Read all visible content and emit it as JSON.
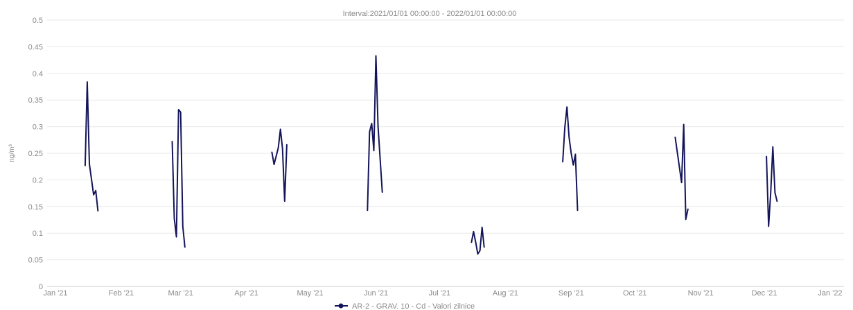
{
  "chart_data": {
    "type": "line",
    "title": "Interval:2021/01/01 00:00:00 - 2022/01/01 00:00:00",
    "ylabel": "ng/m³",
    "xlabel": "",
    "ylim": [
      0,
      0.5
    ],
    "y_ticks": [
      "0",
      "0.05",
      "0.1",
      "0.15",
      "0.2",
      "0.25",
      "0.3",
      "0.35",
      "0.4",
      "0.45",
      "0.5"
    ],
    "xlim": [
      "2021-01-01",
      "2022-01-01"
    ],
    "x_ticks": [
      {
        "date": "2021-01-01",
        "label": "Jan '21"
      },
      {
        "date": "2021-02-01",
        "label": "Feb '21"
      },
      {
        "date": "2021-03-01",
        "label": "Mar '21"
      },
      {
        "date": "2021-04-01",
        "label": "Apr '21"
      },
      {
        "date": "2021-05-01",
        "label": "May '21"
      },
      {
        "date": "2021-06-01",
        "label": "Jun '21"
      },
      {
        "date": "2021-07-01",
        "label": "Jul '21"
      },
      {
        "date": "2021-08-01",
        "label": "Aug '21"
      },
      {
        "date": "2021-09-01",
        "label": "Sep '21"
      },
      {
        "date": "2021-10-01",
        "label": "Oct '21"
      },
      {
        "date": "2021-11-01",
        "label": "Nov '21"
      },
      {
        "date": "2021-12-01",
        "label": "Dec '21"
      },
      {
        "date": "2022-01-01",
        "label": "Jan '22"
      }
    ],
    "grid": true,
    "legend_position": "bottom-center",
    "series": [
      {
        "name": "AR-2 - GRAV. 10 - Cd - Valori zilnice",
        "color": "#14145a",
        "segments": [
          [
            {
              "x": "2021-01-15",
              "y": 0.227
            },
            {
              "x": "2021-01-16",
              "y": 0.384
            },
            {
              "x": "2021-01-17",
              "y": 0.23
            },
            {
              "x": "2021-01-19",
              "y": 0.172
            },
            {
              "x": "2021-01-20",
              "y": 0.18
            },
            {
              "x": "2021-01-21",
              "y": 0.142
            }
          ],
          [
            {
              "x": "2021-02-25",
              "y": 0.272
            },
            {
              "x": "2021-02-26",
              "y": 0.128
            },
            {
              "x": "2021-02-27",
              "y": 0.093
            },
            {
              "x": "2021-02-28",
              "y": 0.332
            },
            {
              "x": "2021-03-01",
              "y": 0.327
            },
            {
              "x": "2021-03-02",
              "y": 0.113
            },
            {
              "x": "2021-03-03",
              "y": 0.074
            }
          ],
          [
            {
              "x": "2021-04-13",
              "y": 0.252
            },
            {
              "x": "2021-04-14",
              "y": 0.229
            },
            {
              "x": "2021-04-16",
              "y": 0.26
            },
            {
              "x": "2021-04-17",
              "y": 0.295
            },
            {
              "x": "2021-04-18",
              "y": 0.259
            },
            {
              "x": "2021-04-19",
              "y": 0.16
            },
            {
              "x": "2021-04-20",
              "y": 0.266
            }
          ],
          [
            {
              "x": "2021-05-28",
              "y": 0.143
            },
            {
              "x": "2021-05-29",
              "y": 0.29
            },
            {
              "x": "2021-05-30",
              "y": 0.306
            },
            {
              "x": "2021-05-31",
              "y": 0.255
            },
            {
              "x": "2021-06-01",
              "y": 0.433
            },
            {
              "x": "2021-06-02",
              "y": 0.3
            },
            {
              "x": "2021-06-04",
              "y": 0.177
            }
          ],
          [
            {
              "x": "2021-07-16",
              "y": 0.083
            },
            {
              "x": "2021-07-17",
              "y": 0.103
            },
            {
              "x": "2021-07-18",
              "y": 0.083
            },
            {
              "x": "2021-07-19",
              "y": 0.061
            },
            {
              "x": "2021-07-20",
              "y": 0.067
            },
            {
              "x": "2021-07-21",
              "y": 0.111
            },
            {
              "x": "2021-07-22",
              "y": 0.074
            }
          ],
          [
            {
              "x": "2021-08-28",
              "y": 0.234
            },
            {
              "x": "2021-08-29",
              "y": 0.298
            },
            {
              "x": "2021-08-30",
              "y": 0.337
            },
            {
              "x": "2021-08-31",
              "y": 0.281
            },
            {
              "x": "2021-09-01",
              "y": 0.25
            },
            {
              "x": "2021-09-02",
              "y": 0.228
            },
            {
              "x": "2021-09-03",
              "y": 0.248
            },
            {
              "x": "2021-09-04",
              "y": 0.143
            }
          ],
          [
            {
              "x": "2021-10-20",
              "y": 0.28
            },
            {
              "x": "2021-10-23",
              "y": 0.195
            },
            {
              "x": "2021-10-24",
              "y": 0.304
            },
            {
              "x": "2021-10-25",
              "y": 0.126
            },
            {
              "x": "2021-10-26",
              "y": 0.145
            }
          ],
          [
            {
              "x": "2021-12-02",
              "y": 0.244
            },
            {
              "x": "2021-12-03",
              "y": 0.113
            },
            {
              "x": "2021-12-04",
              "y": 0.175
            },
            {
              "x": "2021-12-05",
              "y": 0.262
            },
            {
              "x": "2021-12-06",
              "y": 0.176
            },
            {
              "x": "2021-12-07",
              "y": 0.16
            }
          ]
        ]
      }
    ]
  }
}
